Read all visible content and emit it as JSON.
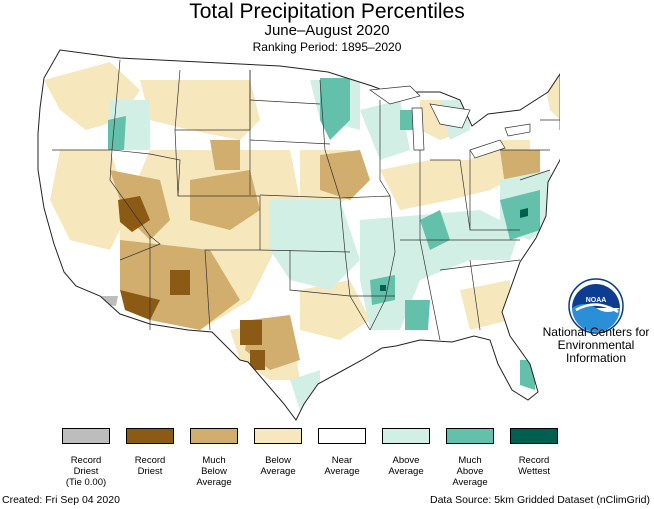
{
  "header": {
    "title": "Total Precipitation Percentiles",
    "subtitle": "June–August 2020",
    "period": "Ranking Period: 1895–2020"
  },
  "agency": {
    "logo_text": "NOAA",
    "line1": "National Centers for",
    "line2": "Environmental",
    "line3": "Information"
  },
  "legend": [
    {
      "line1": "Record",
      "line2": "Driest",
      "line3": "(Tie 0.00)",
      "color": "#bdbdbd"
    },
    {
      "line1": "Record",
      "line2": "Driest",
      "line3": "",
      "color": "#8b5a14"
    },
    {
      "line1": "Much",
      "line2": "Below",
      "line3": "Average",
      "color": "#d2ae6e"
    },
    {
      "line1": "Below",
      "line2": "Average",
      "line3": "",
      "color": "#f6e7bc"
    },
    {
      "line1": "Near",
      "line2": "Average",
      "line3": "",
      "color": "#ffffff"
    },
    {
      "line1": "Above",
      "line2": "Average",
      "line3": "",
      "color": "#d2efe6"
    },
    {
      "line1": "Much",
      "line2": "Above",
      "line3": "Average",
      "color": "#63c0aa"
    },
    {
      "line1": "Record",
      "line2": "Wettest",
      "line3": "",
      "color": "#00604f"
    }
  ],
  "footer": {
    "created": "Created: Fri Sep 04 2020",
    "source": "Data Source: 5km Gridded Dataset (nClimGrid)"
  }
}
